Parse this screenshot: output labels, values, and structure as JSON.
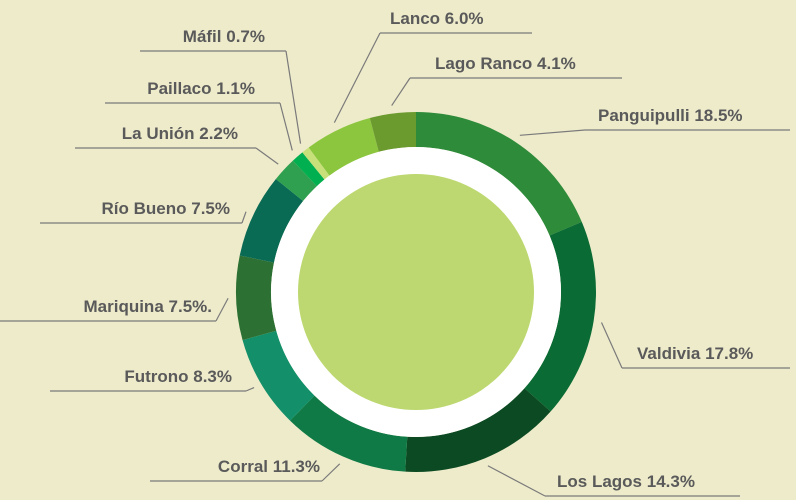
{
  "chart_data": {
    "type": "donut",
    "categories": [
      "Panguipulli",
      "Valdivia",
      "Los Lagos",
      "Corral",
      "Futrono",
      "Mariquina",
      "Río Bueno",
      "La Unión",
      "Paillaco",
      "Máfil",
      "Lanco",
      "Lago Ranco"
    ],
    "values": [
      18.5,
      17.8,
      14.3,
      11.3,
      8.3,
      7.5,
      7.5,
      2.2,
      1.1,
      0.7,
      6.0,
      4.1
    ],
    "value_labels": [
      "18.5%",
      "17.8%",
      "14.3%",
      "11.3%",
      "8.3%",
      "7.5%.",
      "7.5%",
      "2.2%",
      "1.1%",
      "0.7%",
      "6.0%",
      "4.1%"
    ],
    "colors": [
      "#2e8b3a",
      "#0a6b34",
      "#0b4a22",
      "#0f7a45",
      "#13906a",
      "#2d7033",
      "#0a6b55",
      "#2ea050",
      "#00b050",
      "#c7e07a",
      "#8cc63f",
      "#6b9a2f"
    ]
  }
}
